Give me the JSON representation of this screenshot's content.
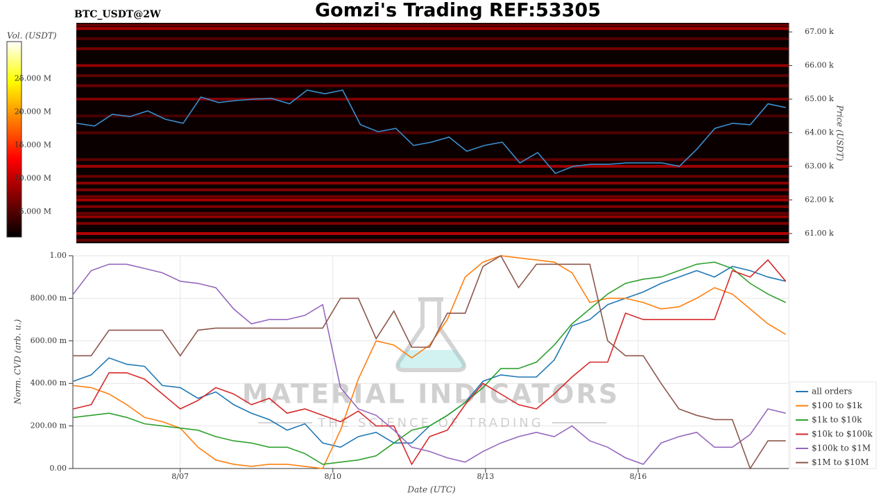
{
  "chart_data": [
    {
      "type": "heatmap",
      "title": "Gomzi's Trading REF:53305",
      "subtitle": "BTC_USDT@2W",
      "ylabel": "Price (USDT)",
      "colorbar_label": "Vol. (USDT)",
      "colormap": "hot",
      "clim": [
        1200000,
        30600000
      ],
      "cticks": [
        {
          "value": 5000000,
          "label": "5.000 M"
        },
        {
          "value": 10000000,
          "label": "10.000 M"
        },
        {
          "value": 15000000,
          "label": "15.000 M"
        },
        {
          "value": 20000000,
          "label": "20.000 M"
        },
        {
          "value": 25000000,
          "label": "25.000 M"
        }
      ],
      "levels": [
        67200,
        67100,
        66800,
        66500,
        66000,
        65700,
        65400,
        65000,
        64500,
        64000,
        63200,
        63000,
        62700,
        62500,
        62300,
        62100,
        62000,
        61800,
        61600,
        61500,
        61300,
        61000,
        60800
      ],
      "volumes": [
        6000000,
        9000000,
        5000000,
        6500000,
        8000000,
        5500000,
        6000000,
        7000000,
        4500000,
        5000000,
        5500000,
        8500000,
        6000000,
        7500000,
        7000000,
        6500000,
        9000000,
        7000000,
        6000000,
        8000000,
        7000000,
        9500000,
        6000000
      ],
      "x": [
        4.9,
        5.25,
        5.6,
        5.95,
        6.3,
        6.65,
        7.0,
        7.35,
        7.7,
        8.05,
        8.4,
        8.75,
        9.1,
        9.45,
        9.8,
        10.15,
        10.5,
        10.85,
        11.2,
        11.55,
        11.9,
        12.25,
        12.6,
        12.95,
        13.3,
        13.65,
        14.0,
        14.35,
        14.7,
        15.05,
        15.4,
        15.75,
        16.1,
        16.45,
        16.8,
        17.15,
        17.5,
        17.85,
        18.2,
        18.55,
        18.9
      ],
      "xlim": [
        4.89,
        18.96
      ],
      "color": "#3a8fd0",
      "values": [
        64280,
        64200,
        64550,
        64480,
        64650,
        64400,
        64280,
        65060,
        64900,
        64960,
        65000,
        65020,
        64860,
        65270,
        65160,
        65270,
        64240,
        64030,
        64130,
        63620,
        63720,
        63870,
        63450,
        63620,
        63720,
        63100,
        63410,
        62790,
        63000,
        63060,
        63060,
        63100,
        63100,
        63100,
        63000,
        63520,
        64130,
        64280,
        64240,
        64860,
        64750
      ],
      "ylim": [
        60710,
        67270
      ],
      "yticks": [
        {
          "value": 61000,
          "label": "61.00 k"
        },
        {
          "value": 62000,
          "label": "62.00 k"
        },
        {
          "value": 63000,
          "label": "63.00 k"
        },
        {
          "value": 64000,
          "label": "64.00 k"
        },
        {
          "value": 65000,
          "label": "65.00 k"
        },
        {
          "value": 66000,
          "label": "66.00 k"
        },
        {
          "value": 67000,
          "label": "67.00 k"
        }
      ]
    },
    {
      "type": "line",
      "ylabel": "Norm. CVD (arb. u.)",
      "xlabel": "Date (UTC)",
      "watermark": "MATERIAL INDICATORS",
      "watermark_subtitle": "THE SCIENCE OF TRADING",
      "x": [
        4.9,
        5.25,
        5.6,
        5.95,
        6.3,
        6.65,
        7.0,
        7.35,
        7.7,
        8.05,
        8.4,
        8.75,
        9.1,
        9.45,
        9.8,
        10.15,
        10.5,
        10.85,
        11.2,
        11.55,
        11.9,
        12.25,
        12.6,
        12.95,
        13.3,
        13.65,
        14.0,
        14.35,
        14.7,
        15.05,
        15.4,
        15.75,
        16.1,
        16.45,
        16.8,
        17.15,
        17.5,
        17.85,
        18.2,
        18.55,
        18.9
      ],
      "xlim": [
        4.89,
        18.96
      ],
      "xticks": [
        {
          "value": 7,
          "label": "8/07"
        },
        {
          "value": 10,
          "label": "8/10"
        },
        {
          "value": 13,
          "label": "8/13"
        },
        {
          "value": 16,
          "label": "8/16"
        }
      ],
      "ylim": [
        0,
        1
      ],
      "yticks": [
        {
          "value": 0,
          "label": "0.00"
        },
        {
          "value": 0.2,
          "label": "200.00 m"
        },
        {
          "value": 0.4,
          "label": "400.00 m"
        },
        {
          "value": 0.6,
          "label": "600.00 m"
        },
        {
          "value": 0.8,
          "label": "800.00 m"
        },
        {
          "value": 1,
          "label": "1.00"
        }
      ],
      "grid": true,
      "legend": "right",
      "series": [
        {
          "name": "all orders",
          "color": "#1f77b4",
          "values": [
            0.41,
            0.44,
            0.52,
            0.49,
            0.48,
            0.39,
            0.38,
            0.33,
            0.36,
            0.3,
            0.26,
            0.23,
            0.18,
            0.21,
            0.12,
            0.1,
            0.15,
            0.17,
            0.12,
            0.12,
            0.2,
            0.25,
            0.31,
            0.41,
            0.44,
            0.43,
            0.43,
            0.51,
            0.67,
            0.7,
            0.77,
            0.8,
            0.83,
            0.87,
            0.9,
            0.93,
            0.9,
            0.95,
            0.93,
            0.9,
            0.88
          ]
        },
        {
          "name": "$100 to $1k",
          "color": "#ff7f0e",
          "values": [
            0.39,
            0.38,
            0.35,
            0.3,
            0.24,
            0.22,
            0.19,
            0.1,
            0.04,
            0.02,
            0.01,
            0.02,
            0.02,
            0.01,
            0.0,
            0.18,
            0.42,
            0.6,
            0.58,
            0.52,
            0.58,
            0.7,
            0.9,
            0.97,
            1.0,
            0.99,
            0.98,
            0.97,
            0.92,
            0.78,
            0.8,
            0.8,
            0.78,
            0.75,
            0.76,
            0.8,
            0.85,
            0.82,
            0.75,
            0.68,
            0.63
          ]
        },
        {
          "name": "$1k to $10k",
          "color": "#2ca02c",
          "values": [
            0.24,
            0.25,
            0.26,
            0.24,
            0.21,
            0.2,
            0.19,
            0.18,
            0.15,
            0.13,
            0.12,
            0.1,
            0.1,
            0.07,
            0.02,
            0.03,
            0.04,
            0.06,
            0.12,
            0.18,
            0.2,
            0.25,
            0.31,
            0.38,
            0.47,
            0.47,
            0.5,
            0.58,
            0.68,
            0.75,
            0.82,
            0.87,
            0.89,
            0.9,
            0.93,
            0.96,
            0.97,
            0.94,
            0.87,
            0.82,
            0.78
          ]
        },
        {
          "name": "$10k to $100k",
          "color": "#d62728",
          "values": [
            0.28,
            0.3,
            0.45,
            0.45,
            0.42,
            0.35,
            0.28,
            0.32,
            0.38,
            0.35,
            0.3,
            0.33,
            0.26,
            0.28,
            0.25,
            0.22,
            0.27,
            0.2,
            0.2,
            0.02,
            0.15,
            0.18,
            0.3,
            0.4,
            0.35,
            0.3,
            0.28,
            0.35,
            0.43,
            0.5,
            0.5,
            0.73,
            0.7,
            0.7,
            0.7,
            0.7,
            0.7,
            0.93,
            0.9,
            0.98,
            0.88
          ]
        },
        {
          "name": "$100k to $1M",
          "color": "#9467bd",
          "values": [
            0.82,
            0.93,
            0.96,
            0.96,
            0.94,
            0.92,
            0.88,
            0.87,
            0.85,
            0.75,
            0.68,
            0.7,
            0.7,
            0.72,
            0.77,
            0.38,
            0.28,
            0.25,
            0.18,
            0.1,
            0.08,
            0.05,
            0.03,
            0.08,
            0.12,
            0.15,
            0.17,
            0.15,
            0.2,
            0.13,
            0.1,
            0.05,
            0.02,
            0.12,
            0.15,
            0.17,
            0.1,
            0.1,
            0.16,
            0.28,
            0.26
          ]
        },
        {
          "name": "$1M to $10M",
          "color": "#8c564b",
          "values": [
            0.53,
            0.53,
            0.65,
            0.65,
            0.65,
            0.65,
            0.53,
            0.65,
            0.66,
            0.66,
            0.66,
            0.66,
            0.66,
            0.66,
            0.66,
            0.8,
            0.8,
            0.61,
            0.74,
            0.57,
            0.57,
            0.73,
            0.73,
            0.95,
            1.0,
            0.85,
            0.96,
            0.96,
            0.96,
            0.96,
            0.6,
            0.53,
            0.53,
            0.4,
            0.28,
            0.25,
            0.23,
            0.23,
            0.0,
            0.13,
            0.13
          ]
        }
      ]
    }
  ]
}
